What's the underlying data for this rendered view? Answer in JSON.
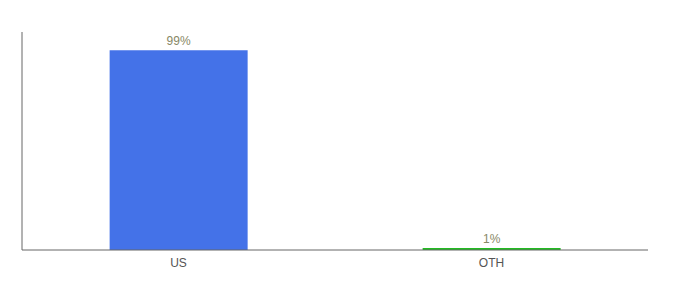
{
  "chart_data": {
    "type": "bar",
    "categories": [
      "US",
      "OTH"
    ],
    "values": [
      99,
      1
    ],
    "value_labels": [
      "99%",
      "1%"
    ],
    "data_labels": true,
    "colors": [
      "#4472e8",
      "#22bb22"
    ],
    "ylim": [
      0,
      108
    ],
    "grid": false,
    "tick_labels": "x"
  }
}
